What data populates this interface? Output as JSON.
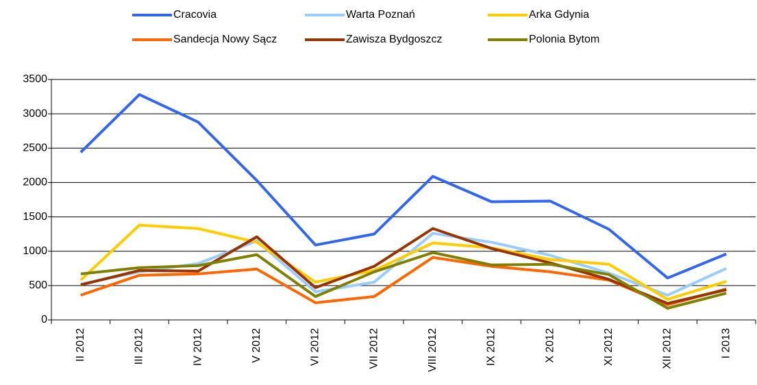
{
  "chart_data": {
    "type": "line",
    "categories": [
      "II 2012",
      "III 2012",
      "IV 2012",
      "V 2012",
      "VI 2012",
      "VII 2012",
      "VIII 2012",
      "IX 2012",
      "X 2012",
      "XI 2012",
      "XII 2012",
      "I 2013"
    ],
    "series": [
      {
        "name": "Cracovia",
        "color": "#3366ee",
        "values": [
          2440,
          3280,
          2880,
          2030,
          1090,
          1250,
          2090,
          1720,
          1730,
          1320,
          610,
          960
        ]
      },
      {
        "name": "Warta Poznań",
        "color": "#99ccff",
        "values": [
          520,
          700,
          820,
          1150,
          410,
          550,
          1260,
          1130,
          940,
          680,
          360,
          750
        ]
      },
      {
        "name": "Arka Gdynia",
        "color": "#ffcc00",
        "values": [
          580,
          1380,
          1330,
          1130,
          550,
          720,
          1120,
          1050,
          880,
          810,
          300,
          560
        ]
      },
      {
        "name": "Sandecja Nowy Sącz",
        "color": "#ff6600",
        "values": [
          360,
          650,
          670,
          740,
          250,
          340,
          910,
          780,
          700,
          580,
          220,
          450
        ]
      },
      {
        "name": "Zawisza Bydgoszcz",
        "color": "#993300",
        "values": [
          510,
          720,
          710,
          1210,
          470,
          780,
          1330,
          1040,
          830,
          590,
          240,
          440
        ]
      },
      {
        "name": "Polonia Bytom",
        "color": "#808000",
        "values": [
          670,
          760,
          790,
          950,
          340,
          700,
          980,
          800,
          810,
          660,
          170,
          390
        ]
      }
    ],
    "ylim": [
      0,
      3500
    ],
    "yticks": [
      0,
      500,
      1000,
      1500,
      2000,
      2500,
      3000,
      3500
    ],
    "grid": true,
    "legend": "top"
  }
}
